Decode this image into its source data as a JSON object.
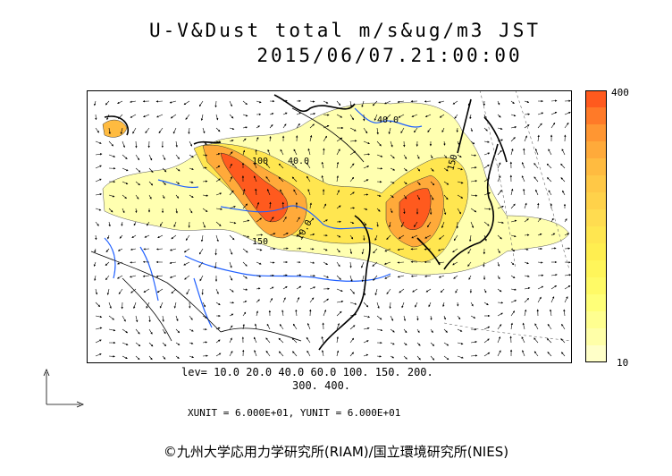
{
  "title_line1": "U-V&Dust total m/s&ug/m3 JST",
  "title_line2": "2015/06/07.21:00:00",
  "colorbar": {
    "max_label": "400",
    "min_label": "10",
    "colors": [
      "#ff5a1e",
      "#ff7a28",
      "#ff9632",
      "#ffaa3a",
      "#ffbb40",
      "#ffc846",
      "#ffd24a",
      "#ffdc50",
      "#ffe650",
      "#ffee50",
      "#fff55a",
      "#fffa66",
      "#ffff78",
      "#ffff90",
      "#ffffa8",
      "#ffffc8"
    ]
  },
  "levels_line1": "lev= 10.0 20.0 40.0 60.0 100. 150. 200.",
  "levels_line2": "300. 400.",
  "unit_line": "XUNIT = 6.000E+01, YUNIT = 6.000E+01",
  "credit": "©九州大学応用力学研究所(RIAM)/国立環境研究所(NIES)",
  "contour_labels": [
    "40.0",
    "100",
    "40.0",
    "150",
    "150",
    "10.0"
  ],
  "colors": {
    "dust_high": "#ff5a1e",
    "dust_low": "#ffffa8",
    "river": "#2060ff",
    "coast": "#000000"
  }
}
